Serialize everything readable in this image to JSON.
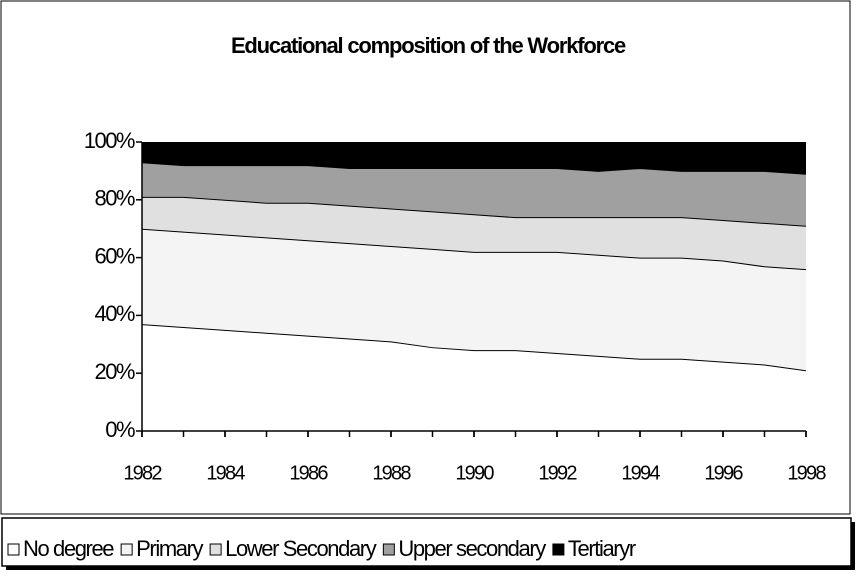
{
  "chart_data": {
    "type": "stacked-area",
    "title": "Educational composition of the Workforce",
    "x": [
      1982,
      1983,
      1984,
      1985,
      1986,
      1987,
      1988,
      1989,
      1990,
      1991,
      1992,
      1993,
      1994,
      1995,
      1996,
      1997,
      1998
    ],
    "xlim": [
      1982,
      1998
    ],
    "xticks": [
      1982,
      1984,
      1986,
      1988,
      1990,
      1992,
      1994,
      1996,
      1998
    ],
    "ylim": [
      0,
      100
    ],
    "yticks": [
      {
        "value": 0,
        "label": "0%"
      },
      {
        "value": 20,
        "label": "20%"
      },
      {
        "value": 40,
        "label": "40%"
      },
      {
        "value": 60,
        "label": "60%"
      },
      {
        "value": 80,
        "label": "80%"
      },
      {
        "value": 100,
        "label": "100%"
      }
    ],
    "series": [
      {
        "name": "No degree",
        "color": "#ffffff",
        "values": [
          37,
          36,
          35,
          34,
          33,
          32,
          31,
          29,
          28,
          28,
          27,
          26,
          25,
          25,
          24,
          23,
          21
        ]
      },
      {
        "name": "Primary",
        "color": "#f4f4f4",
        "values": [
          33,
          33,
          33,
          33,
          33,
          33,
          33,
          34,
          34,
          34,
          35,
          35,
          35,
          35,
          35,
          34,
          35
        ]
      },
      {
        "name": "Lower Secondary",
        "color": "#e0e0e0",
        "values": [
          11,
          12,
          12,
          12,
          13,
          13,
          13,
          13,
          13,
          12,
          12,
          13,
          14,
          14,
          14,
          15,
          15
        ]
      },
      {
        "name": "Upper secondary",
        "color": "#a0a0a0",
        "values": [
          12,
          11,
          12,
          13,
          13,
          13,
          14,
          15,
          16,
          17,
          17,
          16,
          17,
          16,
          17,
          18,
          18
        ]
      },
      {
        "name": "Tertiaryr",
        "color": "#000000",
        "values": [
          7,
          8,
          8,
          8,
          8,
          9,
          9,
          9,
          9,
          9,
          9,
          10,
          9,
          10,
          10,
          10,
          11
        ]
      }
    ],
    "legend": "bottom"
  }
}
